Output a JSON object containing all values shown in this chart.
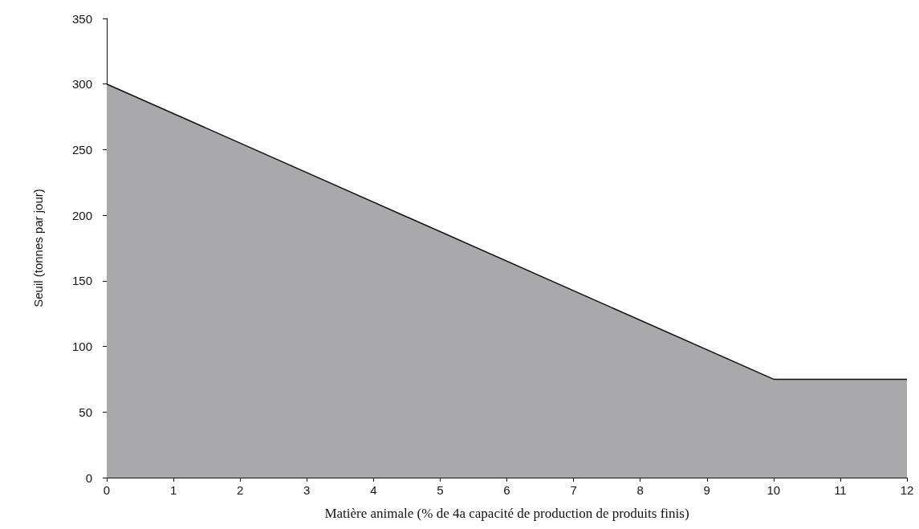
{
  "chart_data": {
    "type": "area",
    "xlabel": "Matière animale (% de 4a capacité de production de produits finis)",
    "ylabel": "Seuil (tonnes par jour)",
    "x": [
      0,
      10,
      12
    ],
    "series": [
      {
        "color": "#a9a9ab",
        "values": [
          300,
          75,
          75
        ]
      }
    ],
    "xlim": [
      0,
      12
    ],
    "xticks": [
      0,
      1,
      2,
      3,
      4,
      5,
      6,
      7,
      8,
      9,
      10,
      11,
      12
    ],
    "ylim": [
      0,
      350
    ],
    "yticks": [
      0,
      50,
      100,
      150,
      200,
      250,
      300,
      350
    ],
    "grid": false,
    "marker": "none",
    "line_style": "solid"
  }
}
